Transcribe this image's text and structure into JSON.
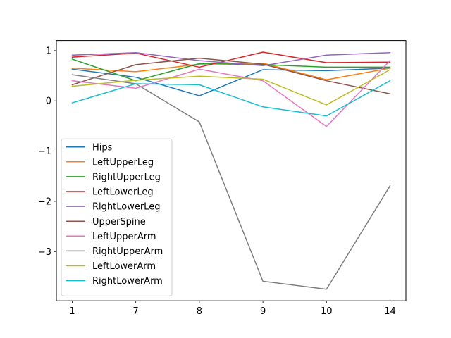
{
  "chart_data": {
    "type": "line",
    "title": "",
    "xlabel": "",
    "ylabel": "",
    "categories": [
      "1",
      "7",
      "8",
      "9",
      "10",
      "14"
    ],
    "ylim": [
      -3.98,
      1.2
    ],
    "yticks": [
      1,
      0,
      -1,
      -2,
      -3
    ],
    "ytick_labels": [
      "1",
      "0",
      "−1",
      "−2",
      "−3"
    ],
    "grid": false,
    "legend_position": "lower-left",
    "series": [
      {
        "name": "Hips",
        "color": "#1f77b4",
        "values": [
          0.63,
          0.47,
          0.1,
          0.62,
          0.6,
          0.65
        ]
      },
      {
        "name": "LeftUpperLeg",
        "color": "#ff7f0e",
        "values": [
          0.65,
          0.58,
          0.73,
          0.75,
          0.42,
          0.65
        ]
      },
      {
        "name": "RightUpperLeg",
        "color": "#2ca02c",
        "values": [
          0.83,
          0.4,
          0.74,
          0.72,
          0.67,
          0.67
        ]
      },
      {
        "name": "LeftLowerLeg",
        "color": "#d62728",
        "values": [
          0.87,
          0.95,
          0.67,
          0.97,
          0.76,
          0.77
        ]
      },
      {
        "name": "RightLowerLeg",
        "color": "#9467bd",
        "values": [
          0.91,
          0.96,
          0.8,
          0.7,
          0.91,
          0.96
        ]
      },
      {
        "name": "UpperSpine",
        "color": "#8c564b",
        "values": [
          0.32,
          0.72,
          0.85,
          0.73,
          0.4,
          0.14
        ]
      },
      {
        "name": "LeftUpperArm",
        "color": "#e377c2",
        "values": [
          0.4,
          0.25,
          0.63,
          0.4,
          -0.51,
          0.8
        ]
      },
      {
        "name": "RightUpperArm",
        "color": "#7f7f7f",
        "values": [
          0.52,
          0.34,
          -0.42,
          -3.59,
          -3.75,
          -1.69
        ]
      },
      {
        "name": "LeftLowerArm",
        "color": "#bcbd22",
        "values": [
          0.29,
          0.41,
          0.49,
          0.43,
          -0.08,
          0.62
        ]
      },
      {
        "name": "RightLowerArm",
        "color": "#17becf",
        "values": [
          -0.04,
          0.34,
          0.32,
          -0.12,
          -0.3,
          0.4
        ]
      }
    ]
  }
}
